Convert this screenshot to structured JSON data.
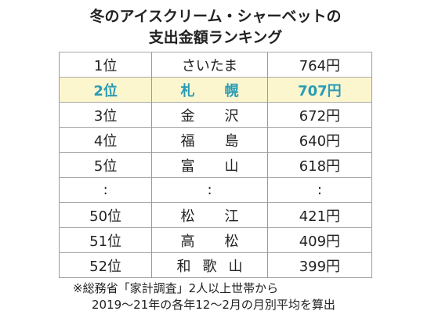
{
  "header": {
    "title": [
      "冬のアイスクリーム・シャーベットの",
      "支出金額ランキング"
    ]
  },
  "table": {
    "highlight_row": 1,
    "rows": [
      [
        "1位",
        "さいたま",
        "764円"
      ],
      [
        "2位",
        "札幌",
        "707円"
      ],
      [
        "3位",
        "金沢",
        "672円"
      ],
      [
        "4位",
        "福島",
        "640円"
      ],
      [
        "5位",
        "富山",
        "618円"
      ],
      [
        ":",
        ":",
        ":"
      ],
      [
        "50位",
        "松江",
        "421円"
      ],
      [
        "51位",
        "高松",
        "409円"
      ],
      [
        "52位",
        "和歌山",
        "399円"
      ]
    ]
  },
  "footnote": [
    "※総務省「家計調査」2人以上世帯から",
    "2019～21年の各年12～2月の月別平均を算出"
  ]
}
